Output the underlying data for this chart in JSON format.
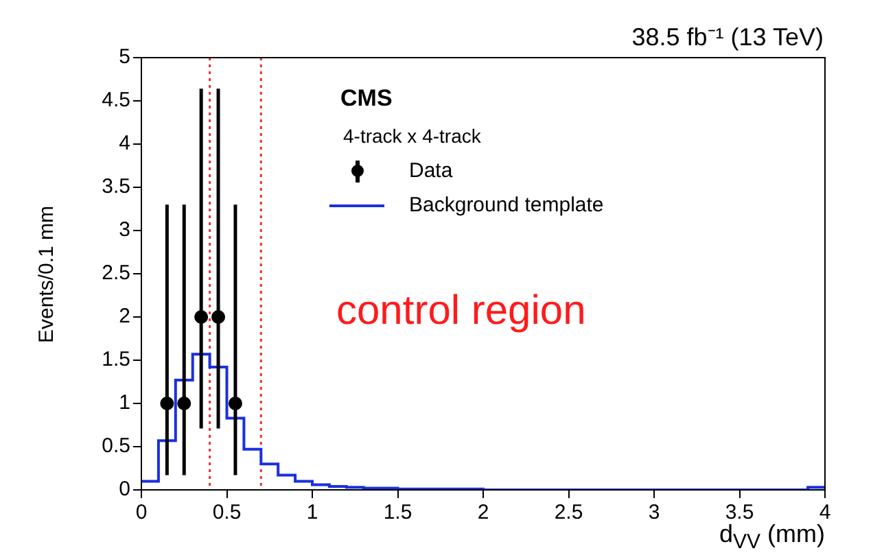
{
  "chart_data": {
    "type": "histogram",
    "title": "38.5 fb⁻¹ (13 TeV)",
    "xlabel": "d$_{VV}$ (mm)",
    "ylabel": "Events/0.1 mm",
    "xlim": [
      0,
      4
    ],
    "xticks": [
      0,
      0.5,
      1,
      1.5,
      2,
      2.5,
      3,
      3.5,
      4
    ],
    "ylim": [
      0,
      5
    ],
    "yticks": [
      0,
      0.5,
      1,
      1.5,
      2,
      2.5,
      3,
      3.5,
      4,
      4.5,
      5
    ],
    "legend": "top right",
    "series": [
      {
        "name": "Data",
        "type": "scatter",
        "color": "#000000",
        "marker": "circle",
        "x": [
          0.15,
          0.25,
          0.35,
          0.45,
          0.55
        ],
        "values": [
          1,
          1,
          2,
          2,
          1
        ],
        "errors": [
          [
            0.17,
            3.3
          ],
          [
            0.17,
            3.3
          ],
          [
            0.71,
            4.64
          ],
          [
            0.71,
            4.64
          ],
          [
            0.17,
            3.3
          ]
        ]
      },
      {
        "name": "Background template",
        "type": "histogram",
        "color": "#1a2fe0",
        "bins": [
          0,
          0.1,
          0.2,
          0.3,
          0.4,
          0.5,
          0.6,
          0.7,
          0.8,
          0.9,
          1.0,
          1.1,
          1.2,
          1.3,
          1.4,
          1.5,
          1.6,
          1.7,
          1.8,
          1.9,
          2.0,
          2.1,
          2.2,
          2.3,
          2.4,
          2.5,
          2.6,
          2.7,
          2.8,
          2.9,
          3.0,
          3.1,
          3.2,
          3.3,
          3.4,
          3.5,
          3.6,
          3.7,
          3.8,
          3.9,
          4.0
        ],
        "values": [
          0.1,
          0.57,
          1.27,
          1.57,
          1.42,
          0.83,
          0.47,
          0.3,
          0.17,
          0.1,
          0.06,
          0.04,
          0.03,
          0.02,
          0.02,
          0.01,
          0.01,
          0.01,
          0.01,
          0.01,
          0,
          0,
          0,
          0,
          0,
          0,
          0,
          0,
          0,
          0,
          0,
          0,
          0,
          0,
          0,
          0,
          0,
          0,
          0,
          0.03
        ]
      }
    ],
    "ref_lines": [
      {
        "axis": "x",
        "value": 0.4,
        "color": "#e8302a",
        "line_style": "dotted"
      },
      {
        "axis": "x",
        "value": 0.7,
        "color": "#e8302a",
        "line_style": "dotted"
      }
    ],
    "annotations": [
      "CMS",
      "4-track x 4-track",
      "control region"
    ]
  }
}
